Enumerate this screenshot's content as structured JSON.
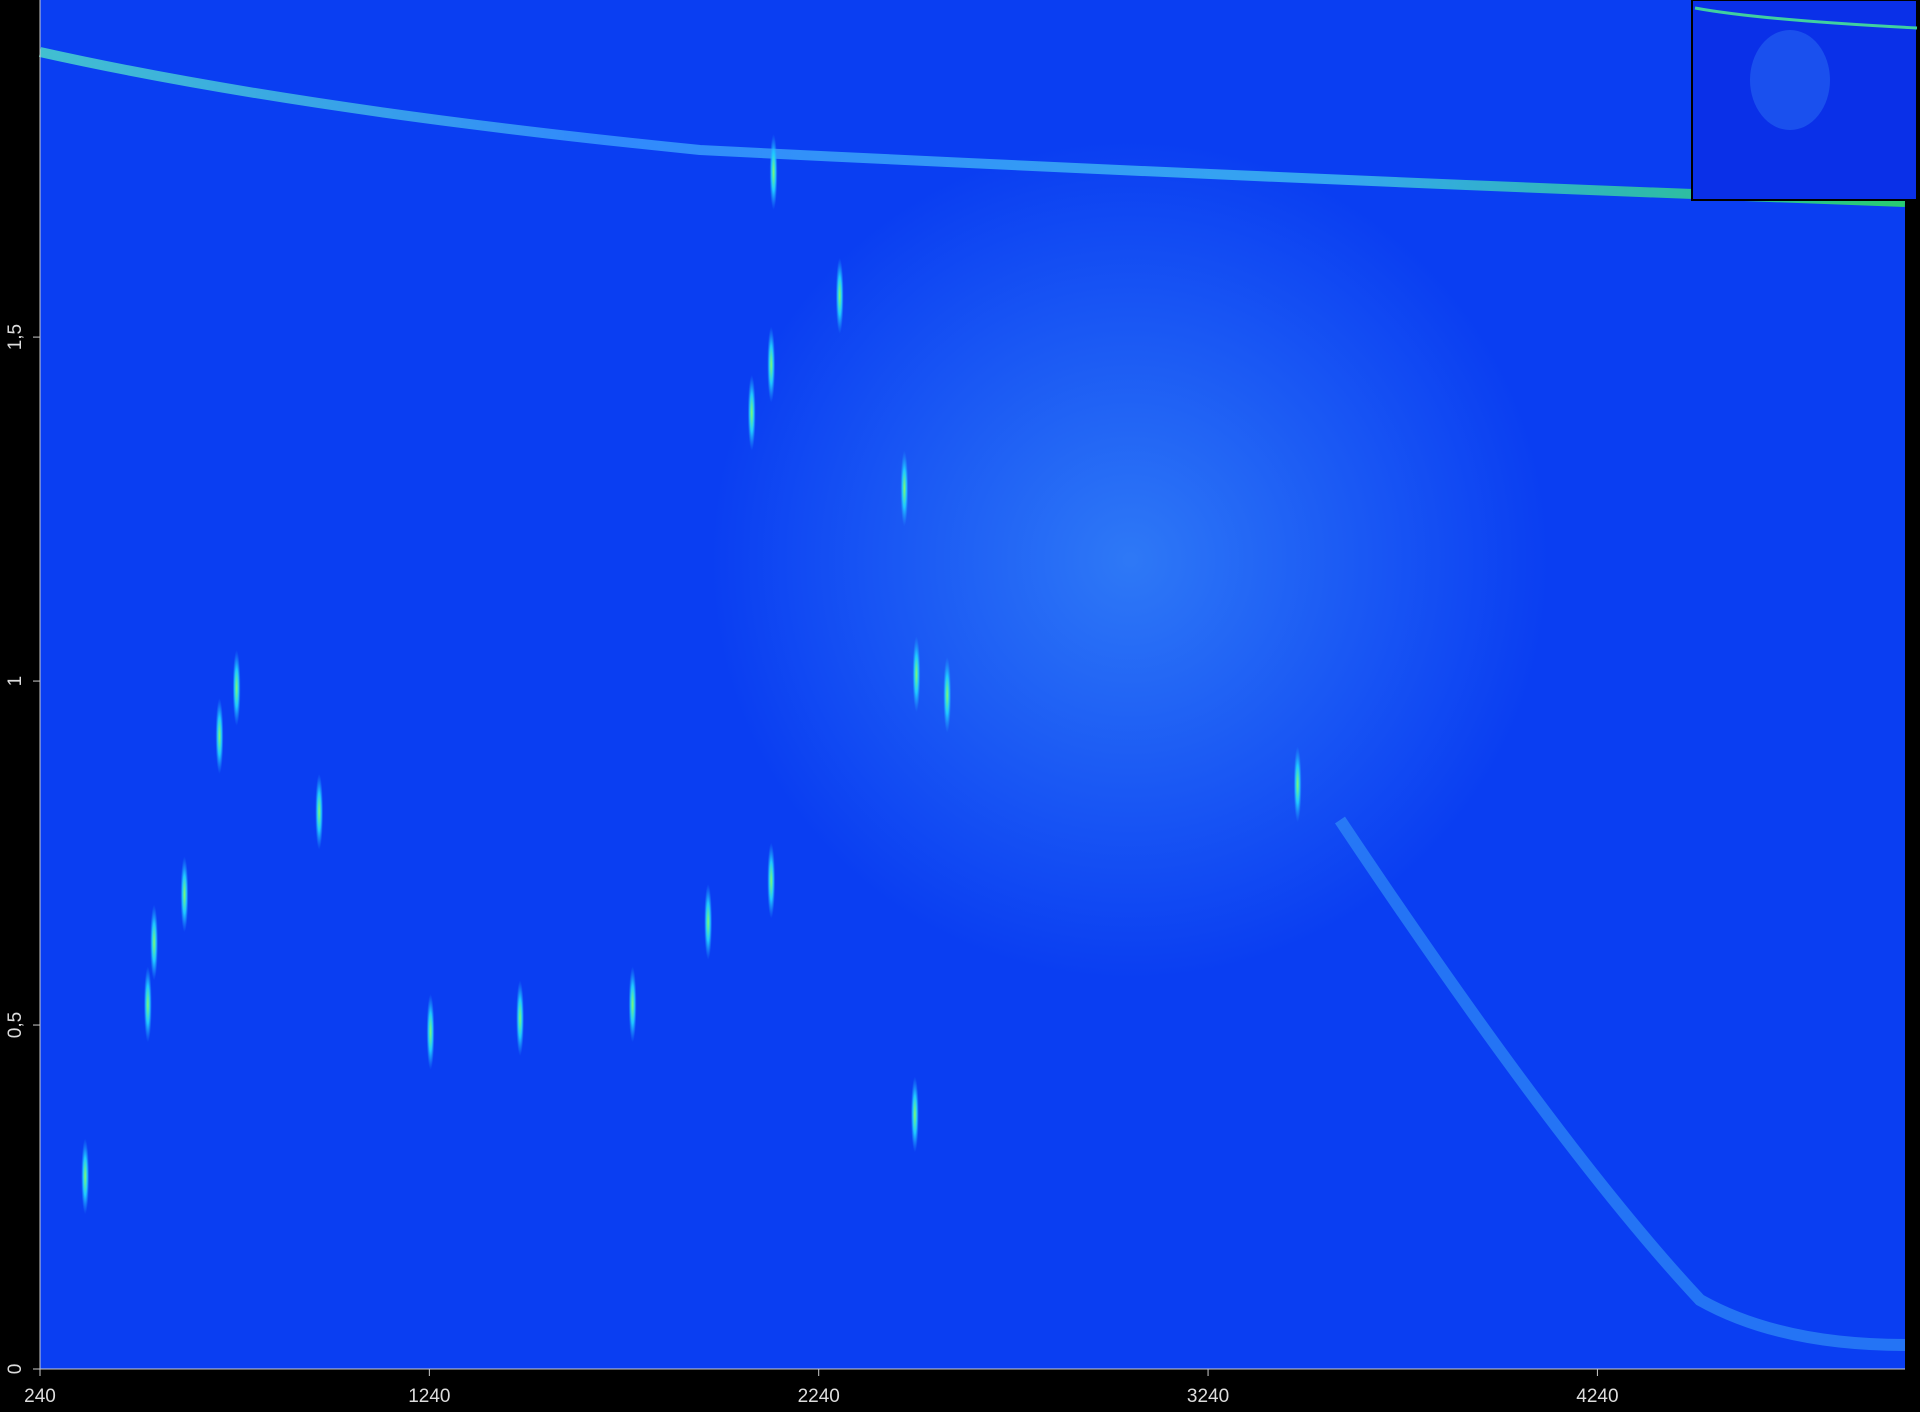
{
  "chart_data": {
    "type": "heatmap",
    "xlim": [
      240,
      5030
    ],
    "ylim": [
      0,
      1.99
    ],
    "xticks": [
      240,
      1240,
      2240,
      3240,
      4240
    ],
    "yticks": [
      0,
      {
        "value": 0.5,
        "label": "0,5"
      },
      1,
      {
        "value": 1.5,
        "label": "1,5"
      }
    ],
    "background_color": "#0a3ef2",
    "peaks": {
      "color": "#3cf0a0",
      "x": [
        2124,
        2118,
        2460,
        2491,
        2570,
        3470,
        2118,
        1762,
        611,
        533,
        517,
        356,
        745,
        701,
        957,
        1956,
        2487,
        1473,
        1243,
        2068,
        2294
      ],
      "y": [
        1.74,
        1.46,
        1.28,
        1.01,
        0.98,
        0.85,
        0.71,
        0.53,
        0.69,
        0.62,
        0.53,
        0.28,
        0.99,
        0.92,
        0.81,
        0.65,
        0.37,
        0.51,
        0.49,
        1.39,
        1.56
      ]
    }
  }
}
